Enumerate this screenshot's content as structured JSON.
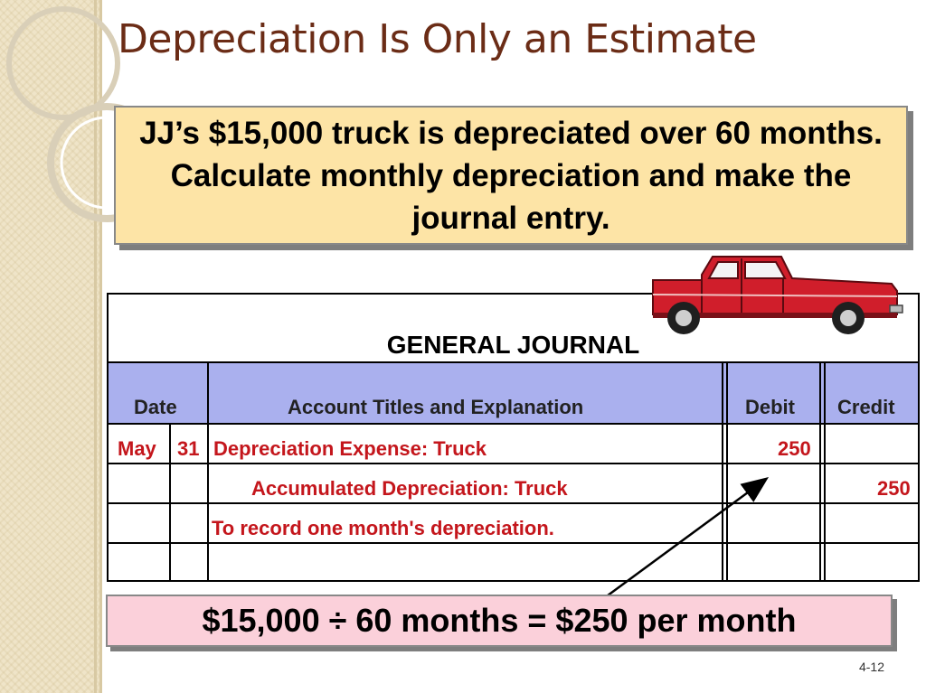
{
  "slide": {
    "title": "Depreciation Is Only an Estimate",
    "page_number": "4-12"
  },
  "problem": {
    "text": "JJ’s $15,000 truck is depreciated over 60 months. Calculate monthly depreciation and make the journal entry."
  },
  "journal": {
    "title": "GENERAL JOURNAL",
    "headers": {
      "date": "Date",
      "account": "Account Titles and Explanation",
      "debit": "Debit",
      "credit": "Credit"
    },
    "rows": [
      {
        "month": "May",
        "day": "31",
        "account": "Depreciation Expense: Truck",
        "debit": "250",
        "credit": ""
      },
      {
        "month": "",
        "day": "",
        "account": "Accumulated Depreciation: Truck",
        "debit": "",
        "credit": "250"
      },
      {
        "month": "",
        "day": "",
        "account": "To record one month's depreciation.",
        "debit": "",
        "credit": ""
      },
      {
        "month": "",
        "day": "",
        "account": "",
        "debit": "",
        "credit": ""
      }
    ]
  },
  "formula": {
    "text": "$15,000 ÷ 60 months = $250 per month"
  },
  "icons": [
    "truck-illustration",
    "arrow-icon"
  ],
  "colors": {
    "title": "#6b2c16",
    "problem_box": "#fde4a6",
    "journal_header": "#aab0ee",
    "entry_text": "#c4161c",
    "formula_box": "#fbd0da"
  }
}
